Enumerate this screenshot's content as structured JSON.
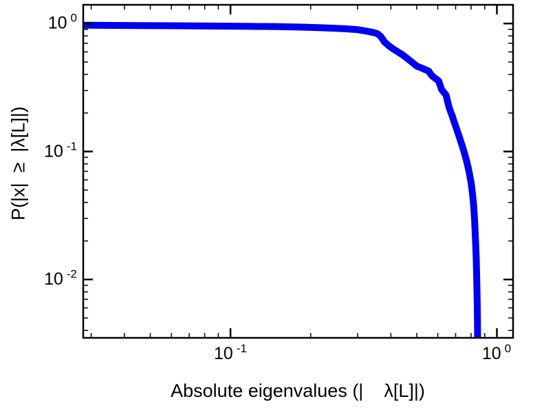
{
  "chart_data": {
    "type": "line",
    "title": "",
    "xlabel": "Absolute eigenvalues (|    λ[L]|)",
    "ylabel": "P(|x|  ≥  |λ[L]|)",
    "x_scale": "log",
    "y_scale": "log",
    "xlim": [
      0.028,
      1.15
    ],
    "ylim": [
      0.0035,
      1.4
    ],
    "grid": false,
    "legend": "none",
    "line_color": "#0000ee",
    "line_width": 10,
    "frame_color": "#000000",
    "points": [
      [
        0.028,
        0.97
      ],
      [
        0.04,
        0.965
      ],
      [
        0.06,
        0.96
      ],
      [
        0.09,
        0.955
      ],
      [
        0.12,
        0.95
      ],
      [
        0.15,
        0.945
      ],
      [
        0.18,
        0.938
      ],
      [
        0.21,
        0.93
      ],
      [
        0.24,
        0.92
      ],
      [
        0.27,
        0.91
      ],
      [
        0.3,
        0.895
      ],
      [
        0.32,
        0.875
      ],
      [
        0.34,
        0.855
      ],
      [
        0.355,
        0.835
      ],
      [
        0.365,
        0.8
      ],
      [
        0.372,
        0.76
      ],
      [
        0.378,
        0.72
      ],
      [
        0.385,
        0.695
      ],
      [
        0.395,
        0.665
      ],
      [
        0.405,
        0.64
      ],
      [
        0.425,
        0.6
      ],
      [
        0.445,
        0.565
      ],
      [
        0.465,
        0.525
      ],
      [
        0.485,
        0.49
      ],
      [
        0.5,
        0.465
      ],
      [
        0.52,
        0.45
      ],
      [
        0.54,
        0.435
      ],
      [
        0.555,
        0.425
      ],
      [
        0.565,
        0.4
      ],
      [
        0.575,
        0.385
      ],
      [
        0.59,
        0.37
      ],
      [
        0.605,
        0.355
      ],
      [
        0.612,
        0.33
      ],
      [
        0.62,
        0.305
      ],
      [
        0.632,
        0.29
      ],
      [
        0.645,
        0.275
      ],
      [
        0.652,
        0.25
      ],
      [
        0.66,
        0.225
      ],
      [
        0.67,
        0.205
      ],
      [
        0.68,
        0.19
      ],
      [
        0.69,
        0.172
      ],
      [
        0.7,
        0.158
      ],
      [
        0.71,
        0.145
      ],
      [
        0.72,
        0.133
      ],
      [
        0.73,
        0.122
      ],
      [
        0.74,
        0.112
      ],
      [
        0.75,
        0.102
      ],
      [
        0.76,
        0.093
      ],
      [
        0.77,
        0.084
      ],
      [
        0.78,
        0.075
      ],
      [
        0.79,
        0.066
      ],
      [
        0.8,
        0.057
      ],
      [
        0.81,
        0.047
      ],
      [
        0.818,
        0.038
      ],
      [
        0.825,
        0.029
      ],
      [
        0.831,
        0.021
      ],
      [
        0.836,
        0.015
      ],
      [
        0.84,
        0.01
      ],
      [
        0.843,
        0.007
      ],
      [
        0.845,
        0.005
      ],
      [
        0.846,
        0.0038
      ],
      [
        0.8465,
        0.003
      ]
    ]
  },
  "axes": {
    "x_ticks": [
      {
        "base": "10",
        "exp": "-1",
        "value": 0.1
      },
      {
        "base": "10",
        "exp": "0",
        "value": 1.0
      }
    ],
    "y_ticks": [
      {
        "base": "10",
        "exp": "0",
        "value": 1.0
      },
      {
        "base": "10",
        "exp": "-1",
        "value": 0.1
      },
      {
        "base": "10",
        "exp": "-2",
        "value": 0.01
      }
    ]
  }
}
